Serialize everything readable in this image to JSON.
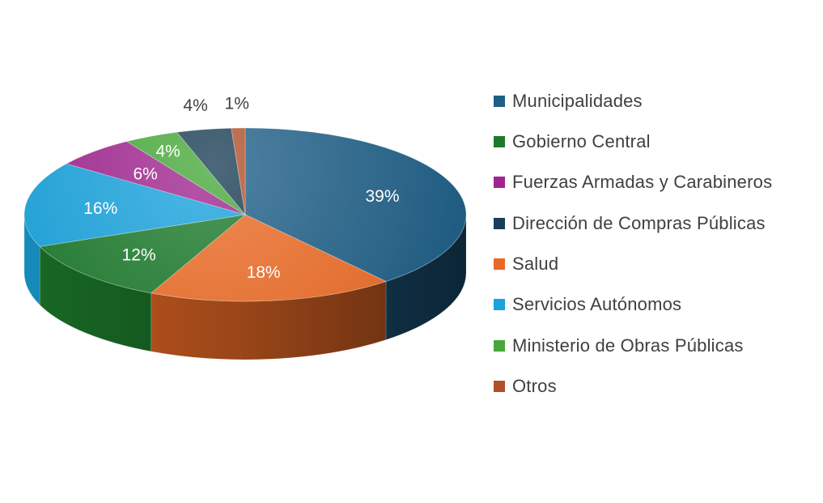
{
  "chart_data": {
    "type": "pie",
    "style": "3d",
    "categories": [
      "Municipalidades",
      "Salud",
      "Gobierno Central",
      "Servicios Autónomos",
      "Fuerzas Armadas y Carabineros",
      "Ministerio de Obras Públicas",
      "Dirección de Compras Públicas",
      "Otros"
    ],
    "values": [
      39,
      18,
      12,
      16,
      6,
      4,
      4,
      1
    ],
    "data_labels": [
      "39%",
      "18%",
      "12%",
      "16%",
      "6%",
      "4%",
      "4%",
      "1%"
    ],
    "colors": [
      "#1f5f86",
      "#ea6a25",
      "#1c7a2c",
      "#1aa3dc",
      "#a0268f",
      "#46a83a",
      "#1a3d55",
      "#b0502a"
    ],
    "legend_position": "right",
    "legend": [
      "Municipalidades",
      "Gobierno Central",
      "Fuerzas Armadas y Carabineros",
      "Dirección de Compras Públicas",
      "Salud",
      "Servicios Autónomos",
      "Ministerio de Obras Públicas",
      "Otros"
    ]
  }
}
